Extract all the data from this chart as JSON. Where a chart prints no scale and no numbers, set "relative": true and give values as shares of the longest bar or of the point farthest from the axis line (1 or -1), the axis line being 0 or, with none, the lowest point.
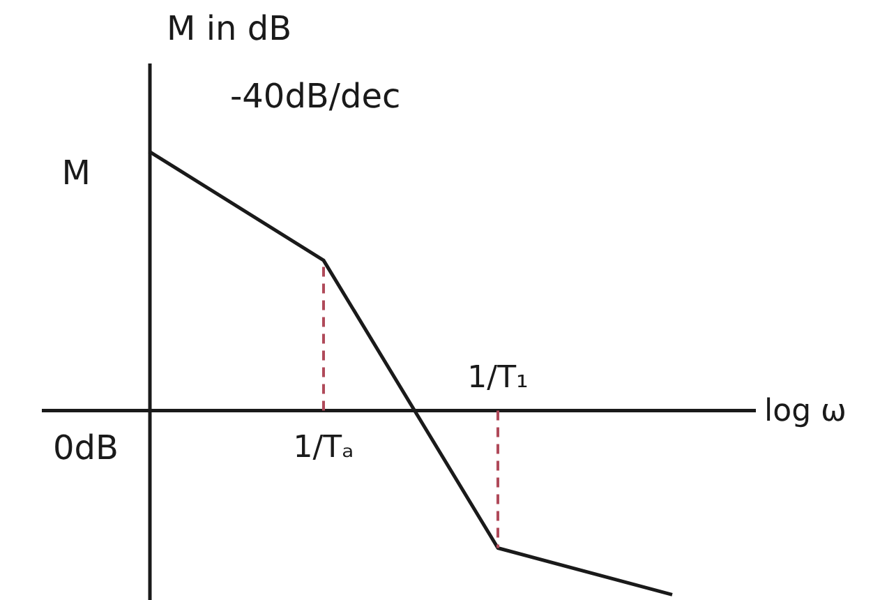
{
  "chart_data": {
    "type": "line",
    "relative": true,
    "ylabel": "M in dB",
    "xlabel": "log ω",
    "categories": [
      null,
      "1/Tₐ",
      "1/T₁",
      null
    ],
    "series": [
      {
        "color": "#1a1a1a",
        "values": [
          1,
          0.58,
          -0.53,
          -0.71
        ]
      }
    ],
    "ref_lines": [
      {
        "axis": "x",
        "value": "1/Tₐ",
        "color": "#b04a5a",
        "line_style": "dashed"
      },
      {
        "axis": "x",
        "value": "1/T₁",
        "color": "#b04a5a",
        "line_style": "dashed"
      }
    ],
    "annotations": [
      "-40dB/dec",
      "M",
      "0dB"
    ]
  }
}
